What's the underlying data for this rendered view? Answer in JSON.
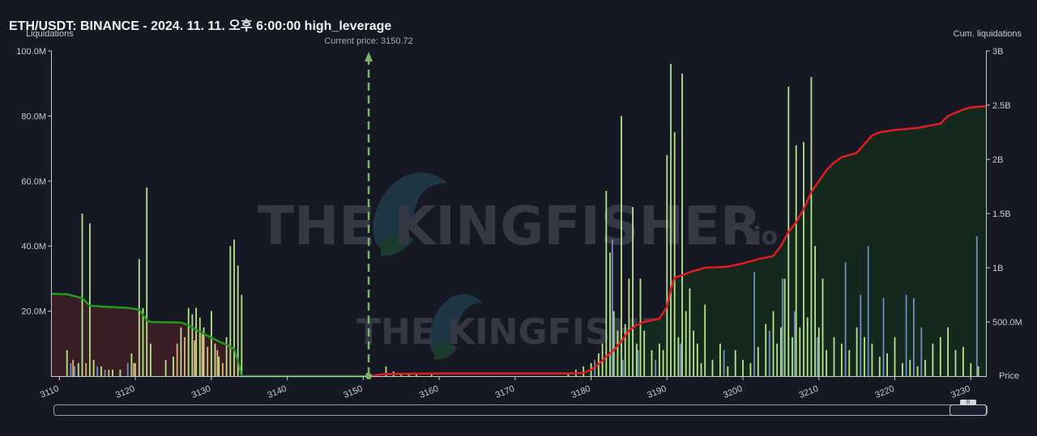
{
  "header": {
    "title": "ETH/USDT: BINANCE - 2024. 11. 11. 오후 6:00:00 high_leverage"
  },
  "watermark": {
    "text_main": "THE KINGFISHER",
    "text_suffix": ".io"
  },
  "colors": {
    "background": "#161824",
    "bar_green": "#b7e48a",
    "bar_blue": "#6f8fc4",
    "bar_orange": "#e0b27a",
    "cum_short_line": "#e31b23",
    "cum_long_line": "#1f9a1f",
    "long_fill": "#3a1f25",
    "short_fill": "#14291f",
    "current_price_line": "#7fb36b"
  },
  "chart_data": {
    "type": "bar",
    "xlabel": "Price",
    "ylabel": "Liquidations",
    "y2label": "Cum. liquidations",
    "xlim": [
      3109,
      3232
    ],
    "ylim": [
      0,
      100000000
    ],
    "y2lim": [
      0,
      3000000000
    ],
    "x_ticks": [
      "3110",
      "3120",
      "3130",
      "3140",
      "3150",
      "3160",
      "3170",
      "3180",
      "3190",
      "3200",
      "3210",
      "3220",
      "3230"
    ],
    "y_ticks": [
      "20.0M",
      "40.0M",
      "60.0M",
      "80.0M",
      "100.0M"
    ],
    "y2_ticks": [
      "500.0M",
      "1B",
      "1.5B",
      "2B",
      "2.5B",
      "3B"
    ],
    "current_price": {
      "label": "Current price: 3150.72",
      "value": 3150.72
    },
    "series": [
      {
        "kind": "bar-green",
        "points": [
          [
            3111,
            8
          ],
          [
            3112.5,
            4
          ],
          [
            3113,
            50
          ],
          [
            3114,
            47
          ],
          [
            3114.5,
            5
          ],
          [
            3115.5,
            3
          ],
          [
            3117,
            2
          ],
          [
            3118,
            2
          ],
          [
            3119.5,
            7
          ],
          [
            3120.5,
            36
          ],
          [
            3121,
            21
          ],
          [
            3121.5,
            58
          ],
          [
            3122,
            10
          ],
          [
            3124,
            5
          ],
          [
            3125,
            6
          ],
          [
            3126,
            15
          ],
          [
            3127,
            21
          ],
          [
            3127.5,
            19
          ],
          [
            3128,
            21
          ],
          [
            3128.5,
            18
          ],
          [
            3129,
            15
          ],
          [
            3130,
            20
          ],
          [
            3130.5,
            10
          ],
          [
            3131,
            6
          ],
          [
            3132,
            12
          ],
          [
            3132.5,
            40
          ],
          [
            3133,
            42
          ],
          [
            3133.5,
            34
          ],
          [
            3134,
            25
          ],
          [
            3150.5,
            1
          ],
          [
            3153,
            3
          ],
          [
            3154,
            1.5
          ],
          [
            3155,
            1
          ],
          [
            3156,
            1
          ],
          [
            3157,
            1
          ],
          [
            3159,
            1
          ],
          [
            3177,
            1
          ],
          [
            3178,
            2
          ],
          [
            3179,
            3
          ],
          [
            3180,
            4
          ],
          [
            3181,
            7
          ],
          [
            3181.5,
            10
          ],
          [
            3182,
            57
          ],
          [
            3182.5,
            38
          ],
          [
            3183,
            20
          ],
          [
            3183.5,
            14
          ],
          [
            3184,
            80
          ],
          [
            3184.5,
            16
          ],
          [
            3185,
            30
          ],
          [
            3185.5,
            52
          ],
          [
            3186,
            10
          ],
          [
            3186.5,
            30
          ],
          [
            3187,
            14
          ],
          [
            3188,
            8
          ],
          [
            3189,
            10
          ],
          [
            3189.5,
            8
          ],
          [
            3190,
            68
          ],
          [
            3190.5,
            96
          ],
          [
            3191,
            75
          ],
          [
            3191.5,
            12
          ],
          [
            3192,
            93
          ],
          [
            3192.5,
            20
          ],
          [
            3193,
            27
          ],
          [
            3193.5,
            14
          ],
          [
            3194,
            10
          ],
          [
            3194.5,
            4
          ],
          [
            3195,
            22
          ],
          [
            3196,
            5
          ],
          [
            3197,
            10
          ],
          [
            3198,
            3
          ],
          [
            3199,
            8
          ],
          [
            3200,
            5
          ],
          [
            3201,
            4
          ],
          [
            3202,
            9
          ],
          [
            3203,
            16
          ],
          [
            3204,
            20
          ],
          [
            3204.5,
            10
          ],
          [
            3205,
            15
          ],
          [
            3205.5,
            30
          ],
          [
            3206,
            89
          ],
          [
            3206.5,
            12
          ],
          [
            3207,
            71
          ],
          [
            3207.5,
            15
          ],
          [
            3208,
            72
          ],
          [
            3208.5,
            18
          ],
          [
            3209,
            92
          ],
          [
            3209.5,
            40
          ],
          [
            3210,
            15
          ],
          [
            3210.5,
            30
          ],
          [
            3211,
            8
          ],
          [
            3212,
            12
          ],
          [
            3213,
            10
          ],
          [
            3214,
            8
          ],
          [
            3215,
            15
          ],
          [
            3216,
            12
          ],
          [
            3217,
            10
          ],
          [
            3218,
            6
          ],
          [
            3219,
            7
          ],
          [
            3220,
            12
          ],
          [
            3221,
            4
          ],
          [
            3222,
            5
          ],
          [
            3223,
            3
          ],
          [
            3224,
            5
          ],
          [
            3225,
            10
          ],
          [
            3226,
            12
          ],
          [
            3227,
            15
          ],
          [
            3228,
            8
          ],
          [
            3229,
            9
          ],
          [
            3230,
            4
          ],
          [
            3231,
            3
          ]
        ]
      },
      {
        "kind": "bar-blue",
        "points": [
          [
            3111.5,
            4
          ],
          [
            3112,
            3
          ],
          [
            3115,
            3
          ],
          [
            3116,
            2
          ],
          [
            3119,
            4
          ],
          [
            3180.5,
            5
          ],
          [
            3182.8,
            42
          ],
          [
            3184.2,
            5
          ],
          [
            3186.2,
            8
          ],
          [
            3188.5,
            5
          ],
          [
            3191.8,
            10
          ],
          [
            3197.5,
            8
          ],
          [
            3201.5,
            32
          ],
          [
            3203.5,
            14
          ],
          [
            3205.2,
            30
          ],
          [
            3206.8,
            20
          ],
          [
            3209.8,
            12
          ],
          [
            3213.5,
            35
          ],
          [
            3215.5,
            25
          ],
          [
            3216.5,
            40
          ],
          [
            3218.5,
            24
          ],
          [
            3221.5,
            25
          ],
          [
            3222.5,
            24
          ],
          [
            3223.5,
            15
          ],
          [
            3230.8,
            43
          ]
        ]
      },
      {
        "kind": "bar-orange",
        "points": [
          [
            3111.8,
            5
          ],
          [
            3113.5,
            4
          ],
          [
            3116.5,
            2
          ],
          [
            3119.8,
            4
          ],
          [
            3120,
            4
          ],
          [
            3125.5,
            10
          ],
          [
            3126.5,
            12
          ],
          [
            3127.8,
            11
          ],
          [
            3128.8,
            13
          ],
          [
            3129.5,
            9
          ],
          [
            3130.8,
            8
          ],
          [
            3131.5,
            4
          ]
        ]
      },
      {
        "kind": "cum-long",
        "points": [
          [
            3109,
            760
          ],
          [
            3111,
            755
          ],
          [
            3113,
            720
          ],
          [
            3114,
            650
          ],
          [
            3116,
            640
          ],
          [
            3119,
            630
          ],
          [
            3120.5,
            615
          ],
          [
            3121.5,
            515
          ],
          [
            3122,
            500
          ],
          [
            3126,
            495
          ],
          [
            3127,
            470
          ],
          [
            3128,
            430
          ],
          [
            3129,
            390
          ],
          [
            3130,
            355
          ],
          [
            3131,
            320
          ],
          [
            3132,
            290
          ],
          [
            3133,
            250
          ],
          [
            3133.5,
            140
          ],
          [
            3134,
            0
          ],
          [
            3150.7,
            0
          ]
        ]
      },
      {
        "kind": "cum-short",
        "points": [
          [
            3150.7,
            0
          ],
          [
            3153,
            20
          ],
          [
            3160,
            25
          ],
          [
            3170,
            25
          ],
          [
            3177,
            25
          ],
          [
            3179,
            30
          ],
          [
            3180,
            60
          ],
          [
            3181,
            110
          ],
          [
            3182,
            180
          ],
          [
            3183,
            240
          ],
          [
            3184,
            320
          ],
          [
            3185,
            420
          ],
          [
            3186,
            470
          ],
          [
            3187,
            500
          ],
          [
            3189,
            530
          ],
          [
            3190,
            640
          ],
          [
            3190.5,
            800
          ],
          [
            3191,
            910
          ],
          [
            3192,
            930
          ],
          [
            3193,
            960
          ],
          [
            3195,
            1000
          ],
          [
            3198,
            1010
          ],
          [
            3200,
            1040
          ],
          [
            3202,
            1080
          ],
          [
            3204,
            1110
          ],
          [
            3205,
            1200
          ],
          [
            3206,
            1330
          ],
          [
            3207,
            1420
          ],
          [
            3208,
            1540
          ],
          [
            3209,
            1700
          ],
          [
            3210,
            1800
          ],
          [
            3211,
            1900
          ],
          [
            3212,
            1970
          ],
          [
            3213,
            2020
          ],
          [
            3215,
            2060
          ],
          [
            3216,
            2140
          ],
          [
            3217,
            2220
          ],
          [
            3218,
            2250
          ],
          [
            3220,
            2270
          ],
          [
            3223,
            2290
          ],
          [
            3226,
            2330
          ],
          [
            3227,
            2400
          ],
          [
            3228,
            2430
          ],
          [
            3229,
            2460
          ],
          [
            3230,
            2480
          ],
          [
            3232,
            2490
          ]
        ]
      }
    ]
  }
}
